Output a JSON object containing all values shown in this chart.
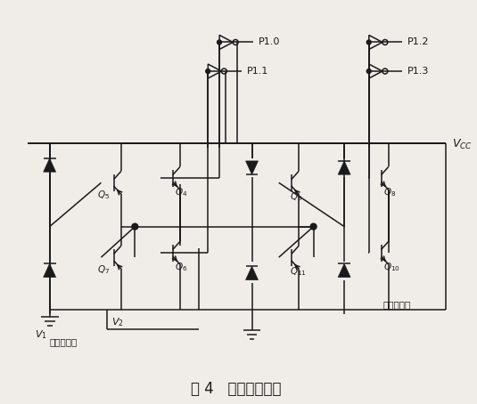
{
  "title": "图 4   电机倒向电路",
  "title_fontsize": 12,
  "bg_color": "#f0ede8",
  "line_color": "#1a1a1a",
  "text_color": "#1a1a1a",
  "labels": {
    "P10": "P1.0",
    "P11": "P1.1",
    "P12": "P1.2",
    "P13": "P1.3",
    "Vcc": "$V_{CC}$",
    "Q4": "$Q_4$",
    "Q5": "$Q_5$",
    "Q6": "$Q_6$",
    "Q7": "$Q_7$",
    "Q8": "$Q_8$",
    "Q9": "$Q_9$",
    "Q10": "$Q_{10}$",
    "Q11": "$Q_{11}$",
    "V1": "$V_1$",
    "V2": "$V_2$",
    "motor": "接直流电机",
    "output": "公共输出端"
  }
}
